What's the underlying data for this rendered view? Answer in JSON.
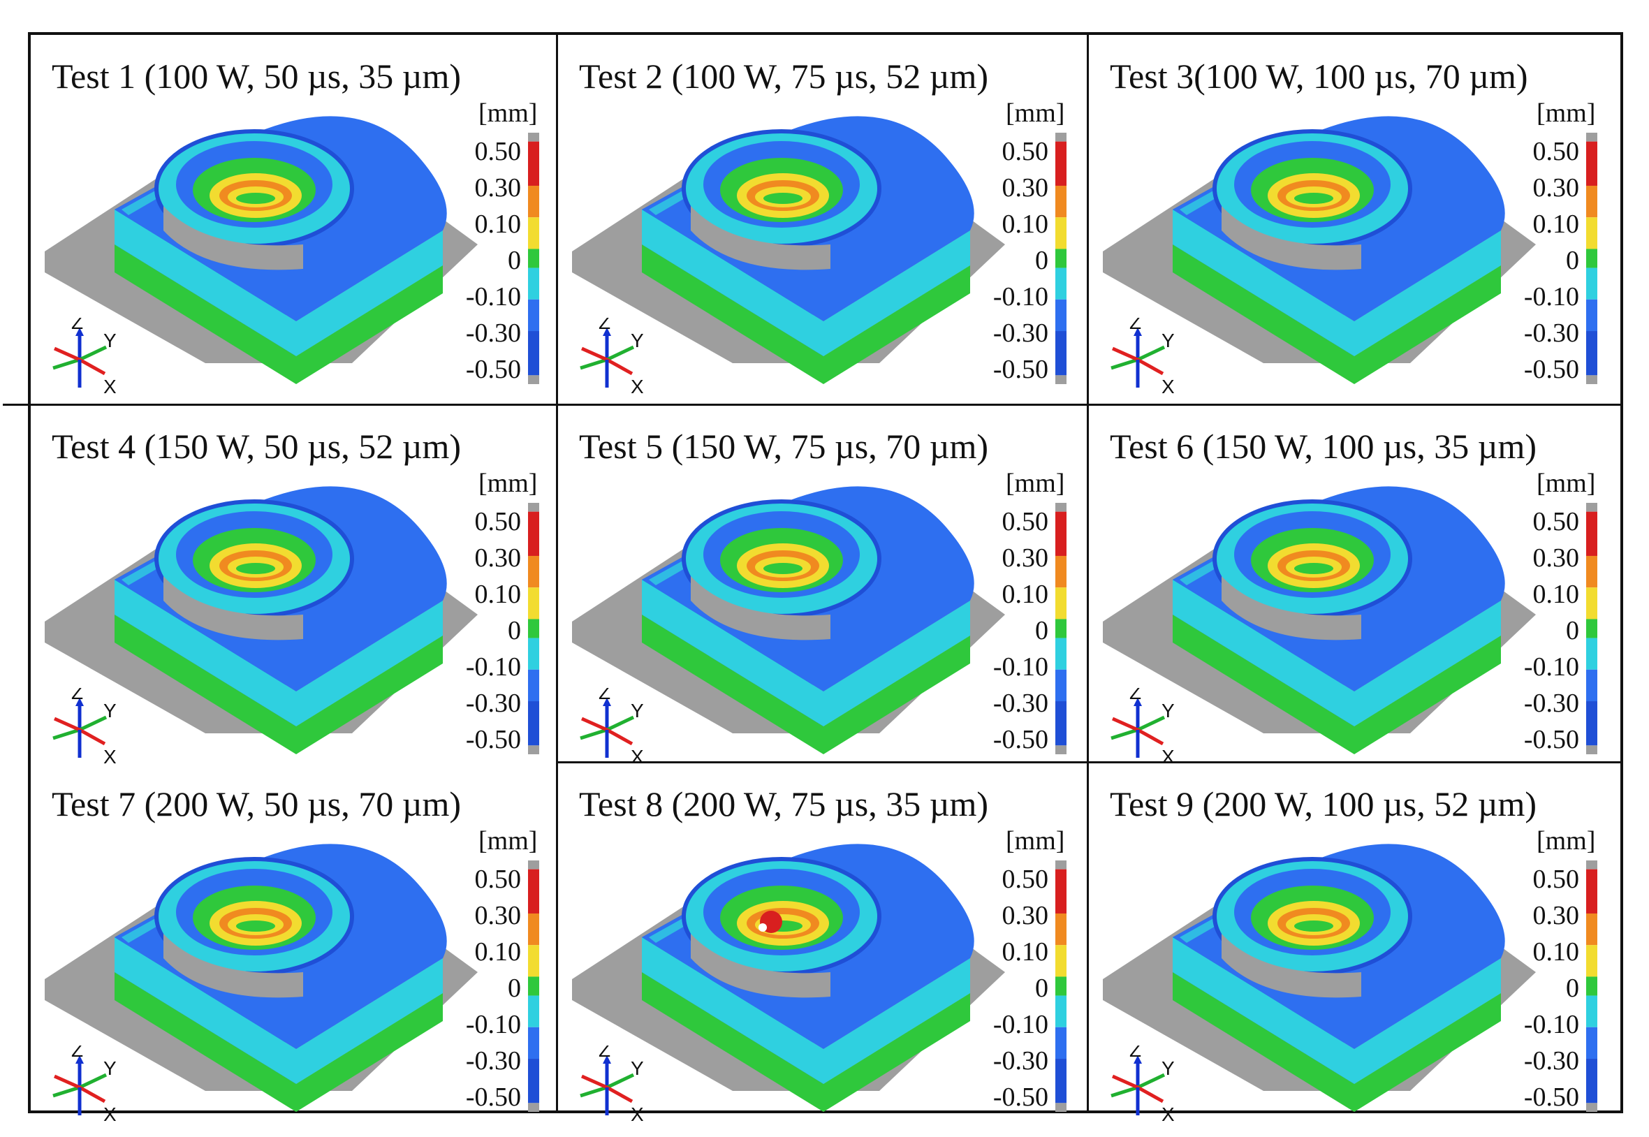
{
  "unit_label": "[mm]",
  "colorbar_ticks": [
    "0.50",
    "0.30",
    "0.10",
    "0",
    "-0.10",
    "-0.30",
    "-0.50"
  ],
  "axis_labels": {
    "z": "Z",
    "y": "Y",
    "x": "X"
  },
  "colors": {
    "deep_blue": "#1f4fd6",
    "blue": "#2e6ff0",
    "cyan": "#2fd0e0",
    "green": "#2fc83c",
    "yellow": "#f2dc30",
    "orange": "#f08a20",
    "red": "#d81f1f",
    "gray": "#9e9e9e",
    "frame": "#111111"
  },
  "tests": [
    {
      "title": "Test 1 (100 W, 50 µs, 35 µm)"
    },
    {
      "title": "Test 2 (100 W, 75 µs, 52 µm)"
    },
    {
      "title": "Test 3(100 W, 100 µs, 70 µm)"
    },
    {
      "title": "Test 4 (150 W, 50 µs, 52 µm)"
    },
    {
      "title": "Test 5 (150 W, 75 µs, 70 µm)"
    },
    {
      "title": "Test 6 (150 W, 100 µs, 35 µm)"
    },
    {
      "title": "Test 7 (200 W, 50 µs, 70 µm)"
    },
    {
      "title": "Test 8 (200 W, 75 µs, 35 µm)"
    },
    {
      "title": "Test 9 (200 W, 100 µs, 52 µm)"
    }
  ]
}
